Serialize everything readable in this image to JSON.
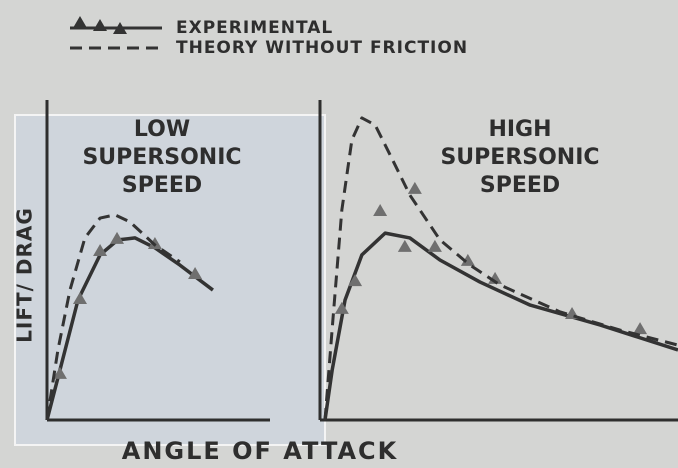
{
  "xlabel": "ANGLE OF ATTACK",
  "ylabel": "LIFT/ DRAG",
  "chart_data": [
    {
      "type": "line",
      "title": "LOW\nSUPERSONIC\nSPEED",
      "xlim": [
        0,
        1
      ],
      "ylim": [
        0,
        1
      ],
      "series": [
        {
          "name": "EXPERIMENTAL",
          "color": "#333333",
          "line_style": "solid",
          "marker": "triangle",
          "x": [
            0,
            0.058,
            0.139,
            0.238,
            0.318,
            0.395,
            0.484,
            0.596,
            0.744
          ],
          "values": [
            0,
            0.156,
            0.375,
            0.516,
            0.563,
            0.569,
            0.538,
            0.484,
            0.406
          ],
          "points_x": [
            0.058,
            0.148,
            0.238,
            0.314,
            0.484,
            0.664
          ],
          "points_y": [
            0.141,
            0.375,
            0.525,
            0.563,
            0.547,
            0.453
          ]
        },
        {
          "name": "THEORY WITHOUT FRICTION",
          "color": "#333333",
          "line_style": "dashed",
          "x": [
            0,
            0.049,
            0.103,
            0.17,
            0.238,
            0.305,
            0.372,
            0.484,
            0.596
          ],
          "values": [
            0,
            0.219,
            0.406,
            0.569,
            0.631,
            0.641,
            0.619,
            0.547,
            0.494
          ]
        }
      ]
    },
    {
      "type": "line",
      "title": "HIGH\nSUPERSONIC\nSPEED",
      "xlim": [
        0,
        1
      ],
      "ylim": [
        0,
        1
      ],
      "series": [
        {
          "color": "#333333",
          "line_style": "solid",
          "marker": "triangle",
          "x": [
            0.014,
            0.034,
            0.07,
            0.117,
            0.182,
            0.251,
            0.335,
            0.447,
            0.587,
            0.782,
            1
          ],
          "values": [
            0,
            0.156,
            0.375,
            0.516,
            0.584,
            0.569,
            0.5,
            0.431,
            0.359,
            0.297,
            0.219
          ],
          "points_x": [
            0.061,
            0.098,
            0.168,
            0.237,
            0.265,
            0.321,
            0.413,
            0.489,
            0.704,
            0.894
          ],
          "points_y": [
            0.344,
            0.431,
            0.65,
            0.538,
            0.719,
            0.538,
            0.494,
            0.438,
            0.328,
            0.281
          ]
        },
        {
          "color": "#333333",
          "line_style": "dashed",
          "x": [
            0.014,
            0.036,
            0.061,
            0.089,
            0.117,
            0.154,
            0.196,
            0.251,
            0.335,
            0.419,
            0.503,
            0.67,
            0.838,
            1
          ],
          "values": [
            0,
            0.313,
            0.656,
            0.875,
            0.944,
            0.922,
            0.828,
            0.703,
            0.563,
            0.484,
            0.422,
            0.338,
            0.281,
            0.234
          ]
        }
      ]
    }
  ]
}
